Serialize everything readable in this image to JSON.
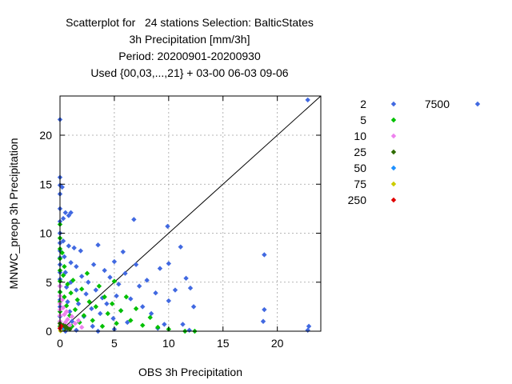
{
  "chart_data": {
    "type": "scatter",
    "title_lines": [
      "Scatterplot for   24 stations Selection: BalticStates",
      "3h Precipitation [mm/3h]",
      "Period: 20200901-20200930",
      "Used {00,03,...,21} + 03-00 06-03 09-06"
    ],
    "xlabel": "OBS 3h Precipitation",
    "ylabel": "MNWC_preop 3h Precipitation",
    "xlim": [
      0,
      24
    ],
    "ylim": [
      0,
      24
    ],
    "xticks": [
      0,
      5,
      10,
      15,
      20
    ],
    "yticks": [
      0,
      5,
      10,
      15,
      20
    ],
    "grid": true,
    "diagonal_line": true,
    "legend_placement": "right",
    "series": [
      {
        "name": "2",
        "color": "#4169e1",
        "points": [
          [
            0,
            21.6
          ],
          [
            0,
            15.7
          ],
          [
            0,
            14.9
          ],
          [
            0,
            14.0
          ],
          [
            0,
            12.5
          ],
          [
            0,
            11.2
          ],
          [
            0,
            10.0
          ],
          [
            0,
            9.0
          ],
          [
            0,
            8.2
          ],
          [
            0,
            7.5
          ],
          [
            0,
            6.8
          ],
          [
            0,
            6.0
          ],
          [
            0,
            5.3
          ],
          [
            0,
            4.6
          ],
          [
            0,
            4.0
          ],
          [
            0,
            3.2
          ],
          [
            0,
            2.5
          ],
          [
            0,
            1.5
          ],
          [
            0,
            0.8
          ],
          [
            0,
            0.3
          ],
          [
            0.2,
            14.7
          ],
          [
            0.3,
            11.5
          ],
          [
            0.3,
            9.2
          ],
          [
            0.4,
            7.6
          ],
          [
            0.5,
            12.1
          ],
          [
            0.5,
            6.0
          ],
          [
            0.6,
            4.5
          ],
          [
            0.7,
            3.0
          ],
          [
            0.8,
            11.8
          ],
          [
            0.8,
            8.7
          ],
          [
            0.9,
            2.0
          ],
          [
            1.0,
            12.1
          ],
          [
            1.0,
            7.0
          ],
          [
            1.0,
            5.0
          ],
          [
            1.1,
            1.0
          ],
          [
            1.3,
            8.5
          ],
          [
            1.5,
            6.6
          ],
          [
            1.5,
            4.2
          ],
          [
            1.7,
            2.8
          ],
          [
            1.9,
            8.2
          ],
          [
            2.0,
            5.6
          ],
          [
            2.2,
            1.5
          ],
          [
            2.4,
            3.8
          ],
          [
            2.6,
            5.0
          ],
          [
            2.9,
            2.3
          ],
          [
            3.0,
            0.5
          ],
          [
            3.1,
            6.8
          ],
          [
            3.3,
            4.2
          ],
          [
            3.5,
            8.8
          ],
          [
            3.7,
            1.8
          ],
          [
            3.9,
            3.4
          ],
          [
            4.1,
            6.2
          ],
          [
            4.3,
            2.8
          ],
          [
            4.6,
            5.5
          ],
          [
            4.9,
            1.3
          ],
          [
            5.0,
            7.1
          ],
          [
            5.2,
            3.6
          ],
          [
            5.4,
            4.8
          ],
          [
            5.6,
            2.1
          ],
          [
            5.8,
            8.1
          ],
          [
            6.0,
            5.9
          ],
          [
            6.2,
            0.9
          ],
          [
            6.5,
            3.3
          ],
          [
            6.8,
            11.4
          ],
          [
            7.0,
            6.8
          ],
          [
            7.3,
            4.6
          ],
          [
            7.6,
            2.5
          ],
          [
            8.0,
            5.2
          ],
          [
            8.4,
            1.8
          ],
          [
            8.8,
            3.9
          ],
          [
            9.2,
            6.4
          ],
          [
            9.6,
            0.7
          ],
          [
            9.9,
            10.7
          ],
          [
            10.0,
            6.9
          ],
          [
            10.0,
            3.1
          ],
          [
            10.6,
            4.2
          ],
          [
            11.1,
            8.6
          ],
          [
            11.6,
            5.4
          ],
          [
            12.0,
            4.4
          ],
          [
            12.3,
            2.5
          ],
          [
            11.9,
            0.1
          ],
          [
            11.3,
            0.7
          ],
          [
            18.8,
            7.8
          ],
          [
            18.8,
            2.2
          ],
          [
            18.7,
            1.0
          ],
          [
            22.8,
            23.6
          ],
          [
            22.9,
            0.5
          ],
          [
            22.8,
            0.1
          ],
          [
            9.0,
            0.3
          ],
          [
            5.0,
            0.2
          ],
          [
            3.5,
            0.0
          ],
          [
            1.5,
            0.1
          ],
          [
            0.5,
            0.0
          ]
        ]
      },
      {
        "name": "5",
        "color": "#00c000",
        "points": [
          [
            0,
            7.4
          ],
          [
            0,
            6.2
          ],
          [
            0,
            5.1
          ],
          [
            0,
            4.0
          ],
          [
            0,
            3.0
          ],
          [
            0,
            2.0
          ],
          [
            0,
            1.0
          ],
          [
            0,
            0.5
          ],
          [
            0.3,
            5.7
          ],
          [
            0.4,
            3.5
          ],
          [
            0.6,
            2.6
          ],
          [
            0.7,
            4.8
          ],
          [
            0.9,
            1.6
          ],
          [
            1.0,
            3.9
          ],
          [
            1.1,
            0.5
          ],
          [
            1.2,
            5.2
          ],
          [
            1.4,
            2.2
          ],
          [
            1.6,
            3.2
          ],
          [
            1.8,
            0.9
          ],
          [
            2.0,
            4.3
          ],
          [
            2.2,
            1.6
          ],
          [
            2.5,
            5.9
          ],
          [
            2.7,
            3.0
          ],
          [
            3.0,
            1.1
          ],
          [
            3.3,
            2.5
          ],
          [
            3.6,
            4.6
          ],
          [
            3.9,
            0.5
          ],
          [
            4.1,
            3.5
          ],
          [
            4.4,
            1.8
          ],
          [
            4.8,
            2.8
          ],
          [
            5.0,
            5.1
          ],
          [
            5.2,
            0.8
          ],
          [
            5.6,
            2.1
          ],
          [
            6.1,
            3.5
          ],
          [
            6.5,
            1.1
          ],
          [
            7.0,
            2.3
          ],
          [
            7.6,
            0.6
          ],
          [
            8.3,
            1.4
          ],
          [
            9.0,
            0.4
          ],
          [
            10.0,
            0.2
          ],
          [
            11.5,
            0.0
          ],
          [
            12.4,
            0.0
          ],
          [
            0,
            10.9
          ],
          [
            0,
            9.5
          ],
          [
            0,
            8.4
          ],
          [
            0.2,
            8.0
          ],
          [
            0.4,
            6.6
          ]
        ]
      },
      {
        "name": "10",
        "color": "#ee82ee",
        "points": [
          [
            0,
            4.6
          ],
          [
            0,
            3.6
          ],
          [
            0,
            2.8
          ],
          [
            0,
            2.2
          ],
          [
            0,
            1.6
          ],
          [
            0,
            1.0
          ],
          [
            0.2,
            3.2
          ],
          [
            0.3,
            2.4
          ],
          [
            0.4,
            1.7
          ],
          [
            0.5,
            0.9
          ],
          [
            0.6,
            2.0
          ],
          [
            0.7,
            1.2
          ],
          [
            0.9,
            0.6
          ],
          [
            1.1,
            1.5
          ],
          [
            1.4,
            0.8
          ],
          [
            1.7,
            1.1
          ],
          [
            2.0,
            0.4
          ]
        ]
      },
      {
        "name": "25",
        "color": "#2e6b00",
        "points": [
          [
            0,
            0.8
          ],
          [
            0.1,
            0.4
          ],
          [
            0.2,
            0.3
          ],
          [
            0.3,
            0.6
          ],
          [
            0.4,
            0.2
          ],
          [
            0.5,
            0.5
          ],
          [
            0.7,
            0.3
          ],
          [
            0.9,
            0.2
          ]
        ]
      },
      {
        "name": "50",
        "color": "#1e90ff",
        "points": [
          [
            0.1,
            0.1
          ],
          [
            0.2,
            0.2
          ]
        ]
      },
      {
        "name": "75",
        "color": "#cccc00",
        "points": [
          [
            0.05,
            0.05
          ]
        ]
      },
      {
        "name": "250",
        "color": "#e00000",
        "points": [
          [
            0,
            0.3
          ],
          [
            0.1,
            0.5
          ]
        ]
      },
      {
        "name": "7500",
        "color": "#4169e1",
        "points": []
      }
    ]
  }
}
